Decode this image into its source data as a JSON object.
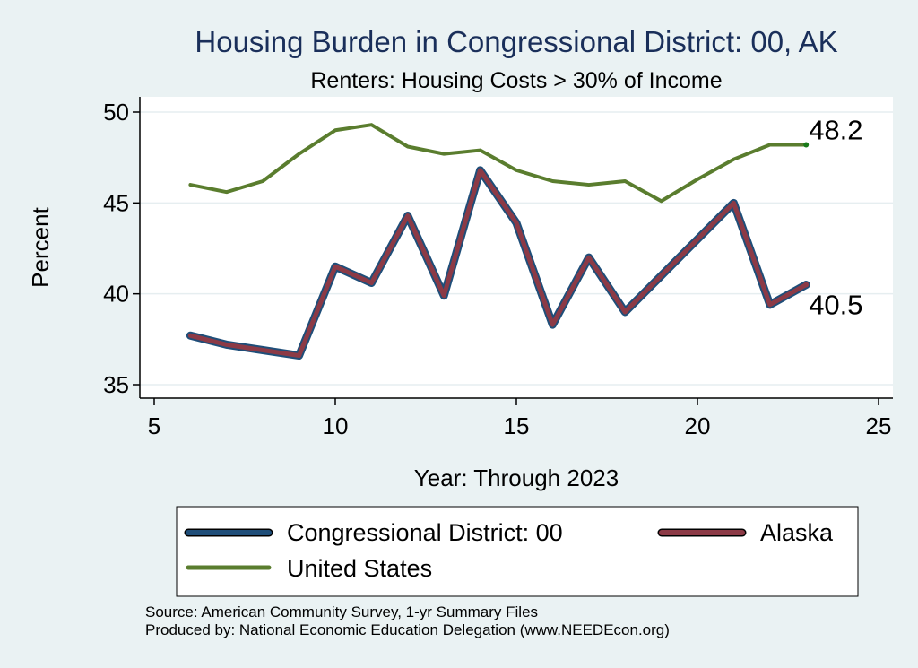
{
  "chart_data": {
    "type": "line",
    "title": "Housing Burden in Congressional District:  00, AK",
    "subtitle": "Renters: Housing Costs > 30% of Income",
    "xlabel": "Year: Through 2023",
    "ylabel": "Percent",
    "xlim": [
      5,
      25
    ],
    "ylim": [
      35,
      50
    ],
    "xticks": [
      5,
      10,
      15,
      20,
      25
    ],
    "yticks": [
      35,
      40,
      45,
      50
    ],
    "grid": true,
    "legend_position": "bottom",
    "series": [
      {
        "name": "Congressional District:  00",
        "color": "#1f4e79",
        "x": [
          6,
          7,
          8,
          9,
          10,
          11,
          12,
          13,
          14,
          15,
          16,
          17,
          18,
          19,
          20,
          21,
          22,
          23
        ],
        "values": [
          37.7,
          37.2,
          36.9,
          36.6,
          41.5,
          40.6,
          44.3,
          39.9,
          46.8,
          43.9,
          38.3,
          42.0,
          39.0,
          41.0,
          43.0,
          45.0,
          39.4,
          40.5
        ]
      },
      {
        "name": "Alaska",
        "color": "#8c3a46",
        "x": [
          6,
          7,
          8,
          9,
          10,
          11,
          12,
          13,
          14,
          15,
          16,
          17,
          18,
          19,
          20,
          21,
          22,
          23
        ],
        "values": [
          37.7,
          37.2,
          36.9,
          36.6,
          41.5,
          40.6,
          44.3,
          39.9,
          46.8,
          43.9,
          38.3,
          42.0,
          39.0,
          41.0,
          43.0,
          45.0,
          39.4,
          40.5
        ]
      },
      {
        "name": "United States",
        "color": "#5a7d2e",
        "x": [
          6,
          7,
          8,
          9,
          10,
          11,
          12,
          13,
          14,
          15,
          16,
          17,
          18,
          19,
          20,
          21,
          22,
          23
        ],
        "values": [
          46.0,
          45.6,
          46.2,
          47.7,
          49.0,
          49.3,
          48.1,
          47.7,
          47.9,
          46.8,
          46.2,
          46.0,
          46.2,
          45.1,
          46.3,
          47.4,
          48.2,
          48.2
        ]
      }
    ],
    "end_labels": [
      {
        "series": "United States",
        "text": "48.2"
      },
      {
        "series": "Alaska",
        "text": "40.5"
      }
    ],
    "notes": [
      "Source: American Community Survey, 1-yr Summary Files",
      "Produced by: National Economic Education Delegation (www.NEEDEcon.org)"
    ]
  }
}
